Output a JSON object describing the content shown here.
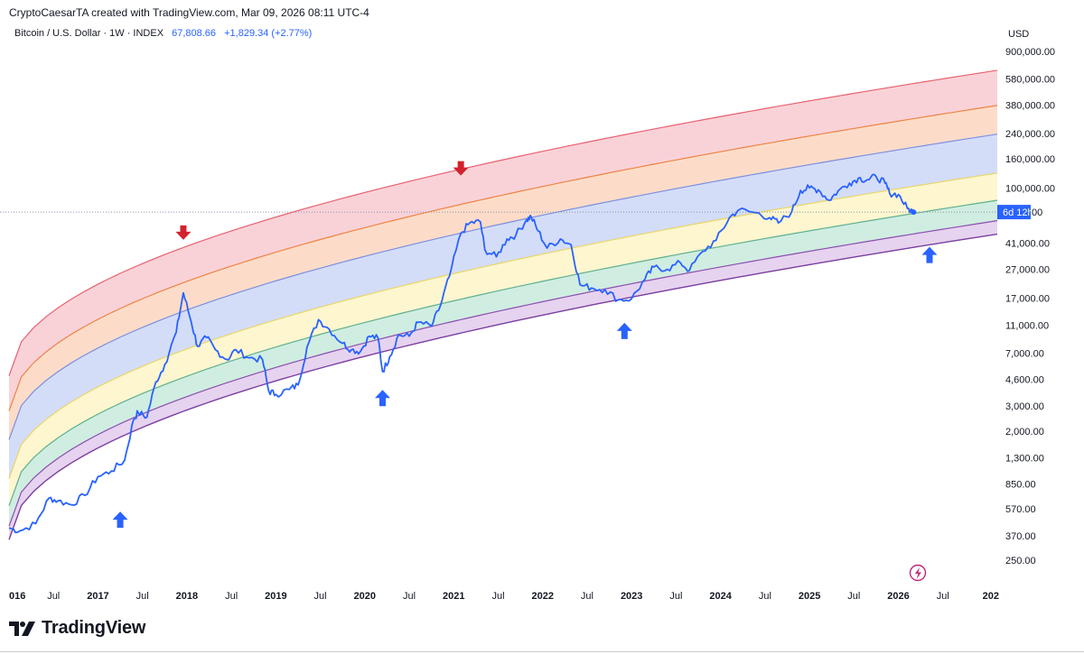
{
  "header": {
    "credit": "CryptoCaesarTA created with TradingView.com, Mar 09, 2026 08:11 UTC-4"
  },
  "legend": {
    "symbol": "Bitcoin / U.S. Dollar · 1W · INDEX",
    "price": "67,808.66",
    "change": "+1,829.34 (+2.77%)"
  },
  "axis": {
    "currency": "USD",
    "countdown": "6d 12h",
    "countdown_price_suffix": "00"
  },
  "brand": {
    "name": "TradingView"
  },
  "colors": {
    "line": "#2962ff",
    "band_red": "#f9d2d8",
    "band_orange": "#fcdcc9",
    "band_blue": "#d4ddf8",
    "band_yellow": "#fdf6cf",
    "band_green": "#d0ede1",
    "band_purple": "#e6d3ef",
    "arrow_down": "#d3222e",
    "arrow_up": "#2962ff"
  },
  "chart_data": {
    "type": "line",
    "title": "Bitcoin / U.S. Dollar · 1W · INDEX",
    "scale": "log",
    "ylim": [
      180,
      1000000
    ],
    "xlim": [
      2016.0,
      2027.0
    ],
    "y_ticks": [
      900000,
      580000,
      380000,
      240000,
      160000,
      100000,
      41000,
      27000,
      17000,
      11000,
      7000,
      4600,
      3000,
      2000,
      1300,
      850,
      570,
      370,
      250
    ],
    "y_tick_labels": [
      "900,000.00",
      "580,000.00",
      "380,000.00",
      "240,000.00",
      "160,000.00",
      "100,000.00",
      "41,000.00",
      "27,000.00",
      "17,000.00",
      "11,000.00",
      "7,000.00",
      "4,600.00",
      "3,000.00",
      "2,000.00",
      "1,300.00",
      "850.00",
      "570.00",
      "370.00",
      "250.00"
    ],
    "x_ticks": [
      {
        "t": 2016.0,
        "label": "016",
        "bold": true
      },
      {
        "t": 2016.5,
        "label": "Jul",
        "bold": false
      },
      {
        "t": 2017.0,
        "label": "2017",
        "bold": true
      },
      {
        "t": 2017.5,
        "label": "Jul",
        "bold": false
      },
      {
        "t": 2018.0,
        "label": "2018",
        "bold": true
      },
      {
        "t": 2018.5,
        "label": "Jul",
        "bold": false
      },
      {
        "t": 2019.0,
        "label": "2019",
        "bold": true
      },
      {
        "t": 2019.5,
        "label": "Jul",
        "bold": false
      },
      {
        "t": 2020.0,
        "label": "2020",
        "bold": true
      },
      {
        "t": 2020.5,
        "label": "Jul",
        "bold": false
      },
      {
        "t": 2021.0,
        "label": "2021",
        "bold": true
      },
      {
        "t": 2021.5,
        "label": "Jul",
        "bold": false
      },
      {
        "t": 2022.0,
        "label": "2022",
        "bold": true
      },
      {
        "t": 2022.5,
        "label": "Jul",
        "bold": false
      },
      {
        "t": 2023.0,
        "label": "2023",
        "bold": true
      },
      {
        "t": 2023.5,
        "label": "Jul",
        "bold": false
      },
      {
        "t": 2024.0,
        "label": "2024",
        "bold": true
      },
      {
        "t": 2024.5,
        "label": "Jul",
        "bold": false
      },
      {
        "t": 2025.0,
        "label": "2025",
        "bold": true
      },
      {
        "t": 2025.5,
        "label": "Jul",
        "bold": false
      },
      {
        "t": 2026.0,
        "label": "2026",
        "bold": true
      },
      {
        "t": 2026.5,
        "label": "Jul",
        "bold": false
      },
      {
        "t": 2027.0,
        "label": "202",
        "bold": true
      }
    ],
    "last_price": 67808.66,
    "series": [
      {
        "name": "BTCUSD",
        "points": [
          [
            2016.0,
            420
          ],
          [
            2016.12,
            400
          ],
          [
            2016.3,
            450
          ],
          [
            2016.45,
            680
          ],
          [
            2016.55,
            650
          ],
          [
            2016.7,
            610
          ],
          [
            2016.85,
            710
          ],
          [
            2017.0,
            960
          ],
          [
            2017.15,
            1050
          ],
          [
            2017.3,
            1250
          ],
          [
            2017.4,
            2400
          ],
          [
            2017.45,
            2700
          ],
          [
            2017.55,
            2500
          ],
          [
            2017.65,
            4400
          ],
          [
            2017.75,
            5800
          ],
          [
            2017.88,
            9800
          ],
          [
            2017.96,
            18500
          ],
          [
            2018.05,
            11500
          ],
          [
            2018.12,
            7800
          ],
          [
            2018.22,
            9000
          ],
          [
            2018.32,
            7400
          ],
          [
            2018.45,
            6300
          ],
          [
            2018.55,
            7400
          ],
          [
            2018.7,
            6500
          ],
          [
            2018.85,
            6300
          ],
          [
            2018.92,
            3800
          ],
          [
            2019.0,
            3600
          ],
          [
            2019.15,
            3900
          ],
          [
            2019.25,
            4200
          ],
          [
            2019.35,
            7700
          ],
          [
            2019.48,
            12000
          ],
          [
            2019.6,
            10300
          ],
          [
            2019.75,
            8200
          ],
          [
            2019.85,
            7400
          ],
          [
            2019.95,
            7200
          ],
          [
            2020.05,
            9200
          ],
          [
            2020.15,
            8900
          ],
          [
            2020.2,
            5200
          ],
          [
            2020.28,
            6600
          ],
          [
            2020.38,
            9400
          ],
          [
            2020.5,
            9200
          ],
          [
            2020.6,
            11500
          ],
          [
            2020.75,
            10800
          ],
          [
            2020.85,
            15000
          ],
          [
            2020.95,
            24000
          ],
          [
            2021.08,
            48000
          ],
          [
            2021.18,
            57000
          ],
          [
            2021.3,
            58000
          ],
          [
            2021.35,
            37000
          ],
          [
            2021.48,
            33000
          ],
          [
            2021.6,
            44000
          ],
          [
            2021.7,
            47000
          ],
          [
            2021.82,
            60000
          ],
          [
            2021.87,
            63000
          ],
          [
            2021.95,
            50000
          ],
          [
            2022.05,
            38000
          ],
          [
            2022.2,
            44000
          ],
          [
            2022.32,
            40000
          ],
          [
            2022.42,
            21000
          ],
          [
            2022.55,
            20000
          ],
          [
            2022.7,
            19500
          ],
          [
            2022.85,
            16500
          ],
          [
            2023.0,
            16800
          ],
          [
            2023.15,
            23000
          ],
          [
            2023.25,
            28000
          ],
          [
            2023.4,
            27000
          ],
          [
            2023.55,
            30000
          ],
          [
            2023.65,
            26500
          ],
          [
            2023.8,
            36000
          ],
          [
            2023.95,
            43000
          ],
          [
            2024.1,
            62000
          ],
          [
            2024.2,
            70000
          ],
          [
            2024.4,
            67000
          ],
          [
            2024.55,
            62000
          ],
          [
            2024.65,
            57000
          ],
          [
            2024.8,
            68000
          ],
          [
            2024.9,
            96000
          ],
          [
            2025.0,
            100000
          ],
          [
            2025.1,
            97000
          ],
          [
            2025.22,
            82000
          ],
          [
            2025.32,
            95000
          ],
          [
            2025.45,
            108000
          ],
          [
            2025.55,
            117000
          ],
          [
            2025.65,
            114000
          ],
          [
            2025.75,
            120000
          ],
          [
            2025.85,
            108000
          ],
          [
            2025.9,
            92000
          ],
          [
            2026.0,
            90000
          ],
          [
            2026.1,
            72000
          ],
          [
            2026.17,
            67808.66
          ]
        ]
      }
    ],
    "rainbow_bands": [
      {
        "name": "red",
        "upper_factor": 8.1,
        "lower_factor": 4.6
      },
      {
        "name": "orange",
        "upper_factor": 4.6,
        "lower_factor": 2.9
      },
      {
        "name": "blue",
        "upper_factor": 2.9,
        "lower_factor": 1.55
      },
      {
        "name": "yellow",
        "upper_factor": 1.55,
        "lower_factor": 1.0
      },
      {
        "name": "green",
        "upper_factor": 1.0,
        "lower_factor": 0.72
      },
      {
        "name": "purple",
        "upper_factor": 0.72,
        "lower_factor": 0.58
      }
    ],
    "band_reference": {
      "t0": 2016.0,
      "v0": 600,
      "t1": 2027.0,
      "v1": 80000
    },
    "annotations": [
      {
        "type": "arrow-down",
        "t": 2017.96,
        "price": 48000
      },
      {
        "type": "arrow-down",
        "t": 2021.08,
        "price": 135000
      },
      {
        "type": "arrow-up",
        "t": 2017.25,
        "price": 480
      },
      {
        "type": "arrow-up",
        "t": 2020.2,
        "price": 3400
      },
      {
        "type": "arrow-up",
        "t": 2022.92,
        "price": 10000
      },
      {
        "type": "arrow-up",
        "t": 2026.35,
        "price": 34000
      }
    ]
  }
}
